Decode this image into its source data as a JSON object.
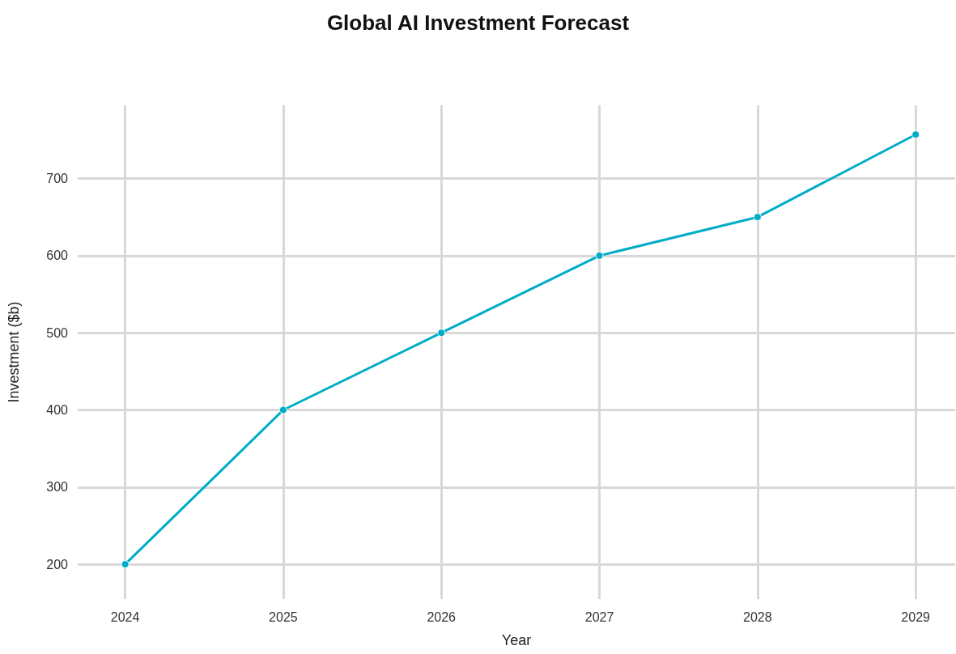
{
  "chart_data": {
    "type": "line",
    "title": "Global AI Investment Forecast",
    "xlabel": "Year",
    "ylabel": "Investment ($b)",
    "x": [
      2024,
      2025,
      2026,
      2027,
      2028,
      2029
    ],
    "series": [
      {
        "color": "#00acc8",
        "values": [
          200,
          400,
          500,
          600,
          650,
          757
        ]
      }
    ],
    "xlim": [
      2023.7,
      2029.25
    ],
    "xticks": [
      2024,
      2025,
      2026,
      2027,
      2028,
      2029
    ],
    "ylim": [
      155,
      795
    ],
    "yticks": [
      200,
      300,
      400,
      500,
      600,
      700
    ],
    "grid": true,
    "marker": "circle",
    "line_style": "solid"
  }
}
